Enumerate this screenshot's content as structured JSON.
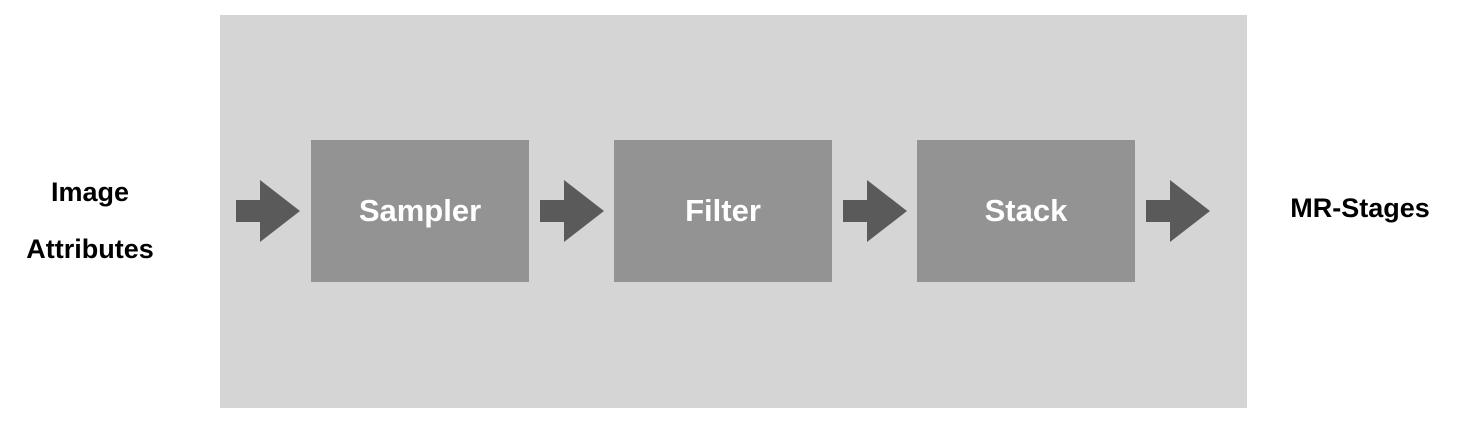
{
  "input": {
    "line1": "Image",
    "line2": "Attributes"
  },
  "stages": [
    "Sampler",
    "Filter",
    "Stack"
  ],
  "output": {
    "label": "MR-Stages"
  },
  "colors": {
    "panel": "#d5d5d5",
    "stage_box": "#939393",
    "arrow": "#5a5a5a",
    "stage_text": "#ffffff",
    "label_text": "#000000"
  }
}
